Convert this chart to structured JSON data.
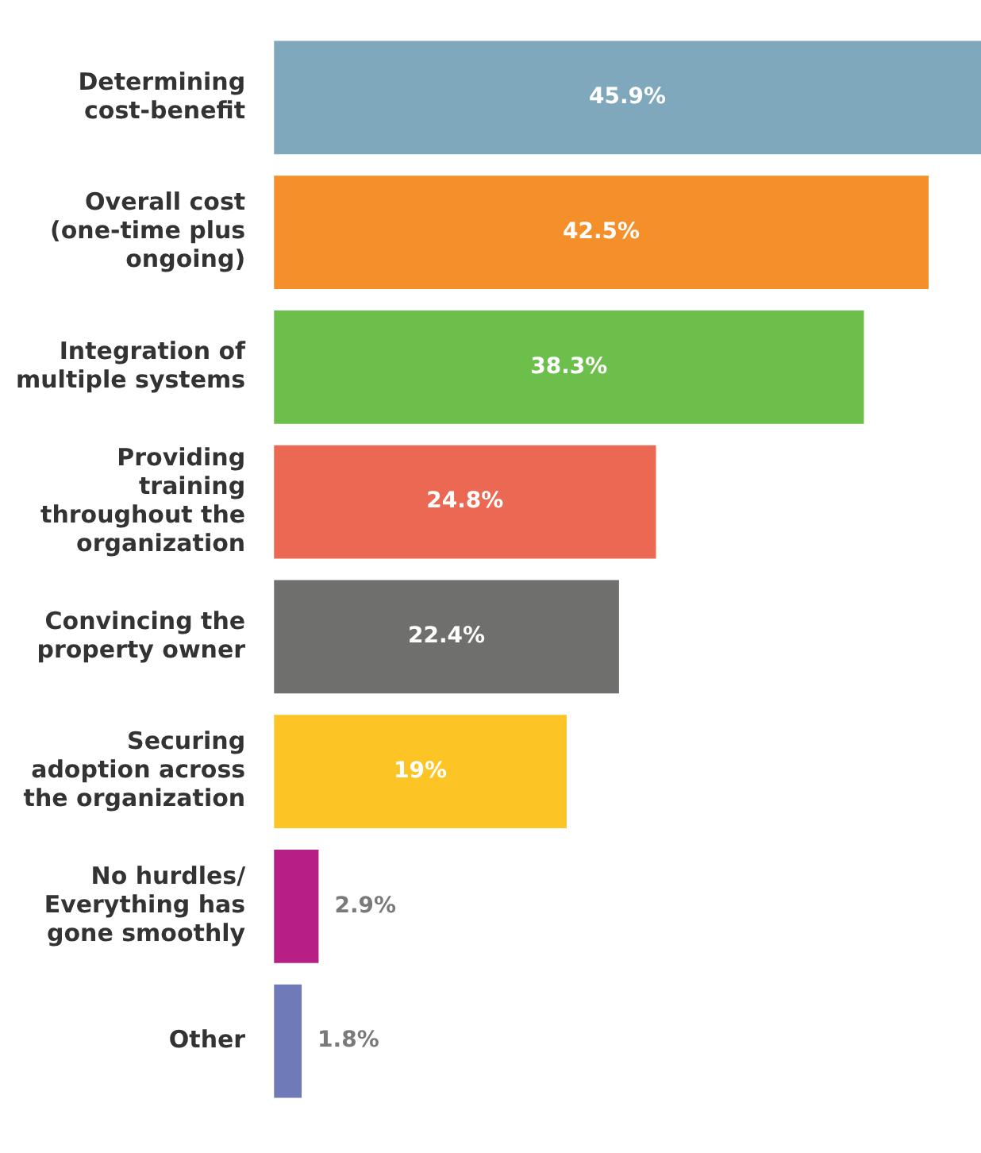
{
  "chart_data": {
    "type": "bar",
    "orientation": "horizontal",
    "legend": false,
    "categories": [
      "Determining cost-benefit",
      "Overall cost (one-time plus ongoing)",
      "Integration of multiple systems",
      "Providing training throughout the organization",
      "Convincing the property owner",
      "Securing adoption across the organization",
      "No hurdles/ Everything has gone smoothly",
      "Other"
    ],
    "values": [
      45.9,
      42.5,
      38.3,
      24.8,
      22.4,
      19,
      2.9,
      1.8
    ],
    "value_labels": [
      "45.9%",
      "42.5%",
      "38.3%",
      "24.8%",
      "22.4%",
      "19%",
      "2.9%",
      "1.8%"
    ],
    "colors": [
      "#7fa8bc",
      "#f58f2a",
      "#6dbf4b",
      "#eb6852",
      "#6f6f6d",
      "#fdc425",
      "#b71f86",
      "#6f7bb9"
    ]
  }
}
